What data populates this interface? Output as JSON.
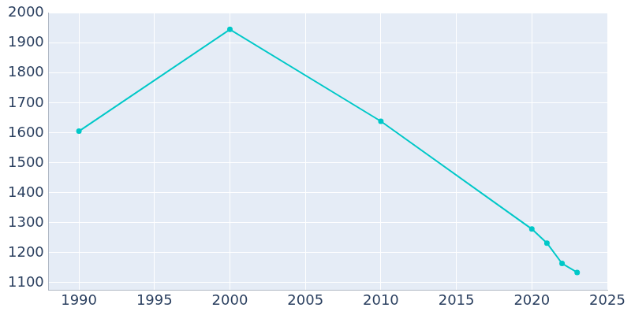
{
  "chart_data": {
    "type": "line",
    "x": [
      1990,
      2000,
      2010,
      2020,
      2021,
      2022,
      2023
    ],
    "values": [
      1606,
      1946,
      1639,
      1279,
      1232,
      1164,
      1134
    ],
    "color": "#00c8c8",
    "marker": "circle",
    "xlim": [
      1988,
      2025
    ],
    "xticks": [
      1990,
      1995,
      2000,
      2005,
      2010,
      2015,
      2020,
      2025
    ],
    "ylim": [
      1075,
      2000
    ],
    "yticks": [
      1100,
      1200,
      1300,
      1400,
      1500,
      1600,
      1700,
      1800,
      1900,
      2000
    ],
    "grid": true
  }
}
